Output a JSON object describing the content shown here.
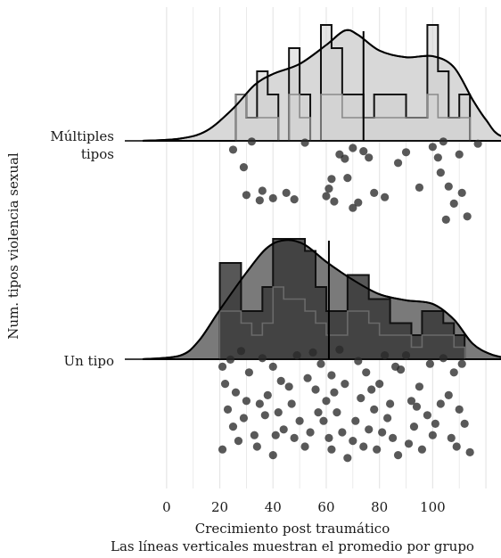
{
  "chart_data": {
    "type": "raincloud",
    "title": "",
    "xlabel": "Crecimiento post traumático",
    "ylabel": "Num. tipos violencia sexual",
    "caption": "Las líneas verticales muestran el promedio por grupo",
    "x_ticks": [
      0,
      20,
      40,
      60,
      80,
      100
    ],
    "xlim": [
      -9,
      124
    ],
    "grid": true,
    "groups": [
      {
        "label_lines": [
          "Múltiples",
          "tipos"
        ],
        "fill": "#d0d0d0",
        "mean": 74,
        "histogram": {
          "edges": [
            26,
            30,
            34,
            38,
            42,
            46,
            50,
            54,
            58,
            62,
            66,
            70,
            74,
            78,
            82,
            86,
            90,
            94,
            98,
            102,
            106,
            110,
            114
          ],
          "counts_a": [
            2,
            1,
            3,
            2,
            0,
            4,
            2,
            0,
            5,
            4,
            2,
            2,
            1,
            2,
            2,
            2,
            1,
            1,
            5,
            3,
            1,
            2
          ],
          "counts_b": [
            2,
            1,
            1,
            1,
            0,
            2,
            1,
            0,
            2,
            2,
            1,
            1,
            1,
            1,
            1,
            1,
            1,
            1,
            2,
            1,
            1,
            1
          ]
        },
        "density": [
          [
            -9,
            0.0
          ],
          [
            5,
            0.02
          ],
          [
            15,
            0.09
          ],
          [
            25,
            0.29
          ],
          [
            33,
            0.5
          ],
          [
            40,
            0.6
          ],
          [
            50,
            0.69
          ],
          [
            60,
            0.86
          ],
          [
            67,
            0.99
          ],
          [
            72,
            0.95
          ],
          [
            80,
            0.81
          ],
          [
            90,
            0.75
          ],
          [
            100,
            0.76
          ],
          [
            108,
            0.66
          ],
          [
            115,
            0.37
          ],
          [
            120,
            0.19
          ],
          [
            126,
            0.04
          ],
          [
            140,
            0.0
          ]
        ],
        "points": [
          [
            32,
            0.8
          ],
          [
            25,
            0.42
          ],
          [
            29,
            -0.4
          ],
          [
            36,
            -1.5
          ],
          [
            30,
            -1.7
          ],
          [
            35,
            -1.95
          ],
          [
            45,
            -1.6
          ],
          [
            40,
            -1.85
          ],
          [
            48,
            -1.9
          ],
          [
            52,
            0.75
          ],
          [
            62,
            -0.95
          ],
          [
            61,
            -1.4
          ],
          [
            60,
            -1.75
          ],
          [
            63,
            -2.0
          ],
          [
            67,
            0.0
          ],
          [
            68,
            -0.9
          ],
          [
            72,
            -2.05
          ],
          [
            70,
            -2.3
          ],
          [
            74,
            0.35
          ],
          [
            76,
            0.05
          ],
          [
            78,
            -1.6
          ],
          [
            82,
            -1.8
          ],
          [
            87,
            -0.2
          ],
          [
            90,
            0.3
          ],
          [
            95,
            -1.35
          ],
          [
            100,
            0.55
          ],
          [
            104,
            0.8
          ],
          [
            102,
            0.05
          ],
          [
            103,
            -0.65
          ],
          [
            106,
            -1.3
          ],
          [
            108,
            -2.1
          ],
          [
            105,
            -2.85
          ],
          [
            110,
            0.2
          ],
          [
            117,
            0.7
          ],
          [
            111,
            -1.6
          ],
          [
            113,
            -2.7
          ],
          [
            65,
            0.2
          ],
          [
            70,
            0.5
          ]
        ]
      },
      {
        "label_lines": [
          "Un tipo"
        ],
        "fill": "#3a3a3a",
        "mean": 61,
        "histogram": {
          "edges": [
            20,
            24,
            28,
            32,
            36,
            40,
            44,
            48,
            52,
            56,
            60,
            64,
            68,
            72,
            76,
            80,
            84,
            88,
            92,
            96,
            100,
            104,
            108,
            112
          ],
          "counts_a": [
            8,
            8,
            4,
            4,
            6,
            10,
            10,
            10,
            9,
            6,
            4,
            4,
            7,
            7,
            5,
            5,
            3,
            3,
            2,
            4,
            4,
            3,
            2
          ],
          "counts_b": [
            4,
            4,
            3,
            2,
            3,
            6,
            5,
            5,
            4,
            3,
            2,
            2,
            4,
            4,
            3,
            2,
            2,
            2,
            1,
            2,
            2,
            2,
            1
          ]
        },
        "density": [
          [
            -9,
            0.0
          ],
          [
            5,
            0.03
          ],
          [
            12,
            0.15
          ],
          [
            20,
            0.41
          ],
          [
            30,
            0.72
          ],
          [
            38,
            0.93
          ],
          [
            45,
            0.99
          ],
          [
            52,
            0.95
          ],
          [
            60,
            0.81
          ],
          [
            70,
            0.66
          ],
          [
            80,
            0.54
          ],
          [
            90,
            0.49
          ],
          [
            100,
            0.46
          ],
          [
            108,
            0.33
          ],
          [
            115,
            0.13
          ],
          [
            122,
            0.04
          ],
          [
            130,
            0.0
          ]
        ],
        "points": [
          [
            21,
            0.3
          ],
          [
            24,
            0.55
          ],
          [
            28,
            0.85
          ],
          [
            22,
            -0.3
          ],
          [
            26,
            -0.6
          ],
          [
            30,
            -0.9
          ],
          [
            23,
            -1.2
          ],
          [
            29,
            -1.5
          ],
          [
            25,
            -1.8
          ],
          [
            33,
            -2.1
          ],
          [
            27,
            -2.3
          ],
          [
            21,
            -2.6
          ],
          [
            36,
            0.6
          ],
          [
            40,
            0.3
          ],
          [
            43,
            -0.2
          ],
          [
            38,
            -0.7
          ],
          [
            47,
            -1.0
          ],
          [
            42,
            -1.3
          ],
          [
            50,
            -1.6
          ],
          [
            44,
            -1.9
          ],
          [
            48,
            -2.2
          ],
          [
            52,
            -2.5
          ],
          [
            40,
            -2.8
          ],
          [
            55,
            0.8
          ],
          [
            58,
            0.4
          ],
          [
            62,
            0.0
          ],
          [
            56,
            -0.5
          ],
          [
            60,
            -0.9
          ],
          [
            64,
            -1.3
          ],
          [
            59,
            -1.6
          ],
          [
            66,
            -2.0
          ],
          [
            70,
            -2.3
          ],
          [
            62,
            -2.6
          ],
          [
            68,
            -2.9
          ],
          [
            72,
            0.5
          ],
          [
            75,
            0.1
          ],
          [
            80,
            -0.3
          ],
          [
            73,
            -0.8
          ],
          [
            78,
            -1.2
          ],
          [
            83,
            -1.5
          ],
          [
            76,
            -1.9
          ],
          [
            85,
            -2.2
          ],
          [
            79,
            -2.6
          ],
          [
            90,
            0.7
          ],
          [
            88,
            0.2
          ],
          [
            95,
            -0.4
          ],
          [
            92,
            -0.9
          ],
          [
            98,
            -1.4
          ],
          [
            93,
            -1.8
          ],
          [
            100,
            -2.1
          ],
          [
            96,
            -2.6
          ],
          [
            104,
            0.6
          ],
          [
            108,
            0.1
          ],
          [
            106,
            -0.7
          ],
          [
            110,
            -1.2
          ],
          [
            112,
            -1.7
          ],
          [
            107,
            -2.2
          ],
          [
            114,
            -2.7
          ],
          [
            34,
            -2.5
          ],
          [
            46,
            -0.4
          ],
          [
            54,
            -2.0
          ],
          [
            65,
            0.9
          ],
          [
            82,
            0.7
          ],
          [
            87,
            -2.8
          ],
          [
            103,
            -1.0
          ],
          [
            31,
            0.1
          ],
          [
            37,
            -1.4
          ],
          [
            49,
            0.7
          ],
          [
            57,
            -1.3
          ],
          [
            63,
            -0.6
          ],
          [
            71,
            -1.6
          ],
          [
            77,
            -0.5
          ],
          [
            84,
            -1.0
          ],
          [
            91,
            -2.4
          ],
          [
            99,
            0.4
          ],
          [
            109,
            -2.5
          ],
          [
            35,
            -1.0
          ],
          [
            41,
            -2.1
          ],
          [
            53,
            -0.1
          ],
          [
            61,
            -2.2
          ],
          [
            67,
            -0.3
          ],
          [
            74,
            -2.5
          ],
          [
            81,
            -2.0
          ],
          [
            86,
            0.3
          ],
          [
            94,
            -1.1
          ],
          [
            101,
            -1.7
          ],
          [
            111,
            0.4
          ]
        ]
      }
    ]
  }
}
